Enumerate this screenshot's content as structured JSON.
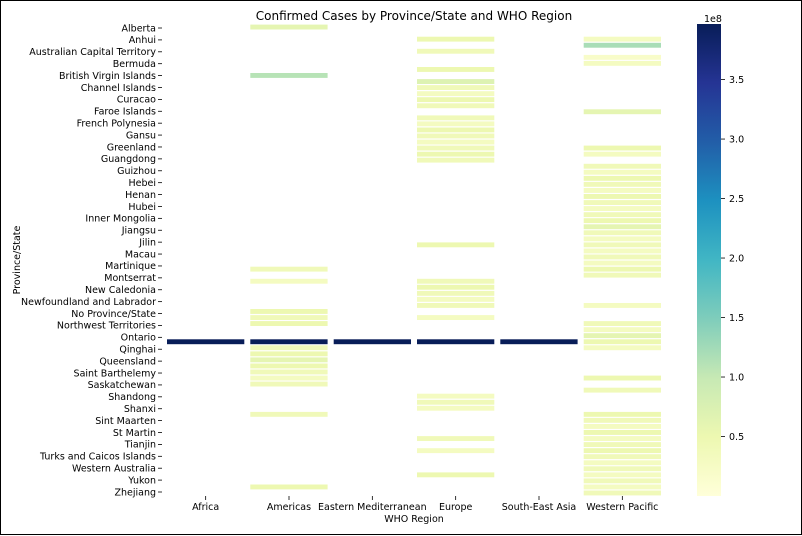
{
  "chart_data": {
    "type": "heatmap",
    "title": "Confirmed Cases by Province/State and WHO Region",
    "xlabel": "WHO Region",
    "ylabel": "Province/State",
    "x_categories": [
      "Africa",
      "Americas",
      "Eastern Mediterranean",
      "Europe",
      "South-East Asia",
      "Western Pacific"
    ],
    "y_tick_labels": [
      "Alberta",
      "Anhui",
      "Australian Capital Territory",
      "Bermuda",
      "British Virgin Islands",
      "Channel Islands",
      "Curacao",
      "Faroe Islands",
      "French Polynesia",
      "Gansu",
      "Greenland",
      "Guangdong",
      "Guizhou",
      "Hebei",
      "Henan",
      "Hubei",
      "Inner Mongolia",
      "Jiangsu",
      "Jilin",
      "Macau",
      "Martinique",
      "Montserrat",
      "New Caledonia",
      "Newfoundland and Labrador",
      "No Province/State",
      "Northwest Territories",
      "Ontario",
      "Qinghai",
      "Queensland",
      "Saint Barthelemy",
      "Saskatchewan",
      "Shandong",
      "Shanxi",
      "Sint Maarten",
      "St Martin",
      "Tianjin",
      "Turks and Caicos Islands",
      "Western Australia",
      "Yukon",
      "Zhejiang"
    ],
    "cell_rows": 78,
    "cells": [
      {
        "row": 0,
        "col": 1,
        "value": 0.6
      },
      {
        "row": 2,
        "col": 3,
        "value": 0.5
      },
      {
        "row": 2,
        "col": 5,
        "value": 0.3
      },
      {
        "row": 3,
        "col": 5,
        "value": 1.2
      },
      {
        "row": 4,
        "col": 3,
        "value": 0.4
      },
      {
        "row": 5,
        "col": 5,
        "value": 0.2
      },
      {
        "row": 6,
        "col": 5,
        "value": 0.3
      },
      {
        "row": 7,
        "col": 3,
        "value": 0.5
      },
      {
        "row": 8,
        "col": 1,
        "value": 1.1
      },
      {
        "row": 9,
        "col": 3,
        "value": 0.7
      },
      {
        "row": 10,
        "col": 3,
        "value": 0.4
      },
      {
        "row": 11,
        "col": 3,
        "value": 0.3
      },
      {
        "row": 12,
        "col": 3,
        "value": 0.5
      },
      {
        "row": 13,
        "col": 3,
        "value": 0.4
      },
      {
        "row": 14,
        "col": 5,
        "value": 0.6
      },
      {
        "row": 15,
        "col": 3,
        "value": 0.4
      },
      {
        "row": 16,
        "col": 3,
        "value": 0.3
      },
      {
        "row": 17,
        "col": 3,
        "value": 0.5
      },
      {
        "row": 18,
        "col": 3,
        "value": 0.4
      },
      {
        "row": 19,
        "col": 3,
        "value": 0.3
      },
      {
        "row": 20,
        "col": 3,
        "value": 0.4
      },
      {
        "row": 20,
        "col": 5,
        "value": 0.5
      },
      {
        "row": 21,
        "col": 3,
        "value": 0.5
      },
      {
        "row": 21,
        "col": 5,
        "value": 0.3
      },
      {
        "row": 22,
        "col": 3,
        "value": 0.4
      },
      {
        "row": 23,
        "col": 5,
        "value": 0.4
      },
      {
        "row": 24,
        "col": 5,
        "value": 0.3
      },
      {
        "row": 25,
        "col": 5,
        "value": 0.5
      },
      {
        "row": 26,
        "col": 5,
        "value": 0.4
      },
      {
        "row": 27,
        "col": 5,
        "value": 0.3
      },
      {
        "row": 28,
        "col": 5,
        "value": 0.5
      },
      {
        "row": 29,
        "col": 5,
        "value": 0.4
      },
      {
        "row": 30,
        "col": 5,
        "value": 0.3
      },
      {
        "row": 31,
        "col": 5,
        "value": 0.4
      },
      {
        "row": 32,
        "col": 5,
        "value": 0.5
      },
      {
        "row": 33,
        "col": 5,
        "value": 0.6
      },
      {
        "row": 34,
        "col": 5,
        "value": 0.4
      },
      {
        "row": 35,
        "col": 5,
        "value": 0.3
      },
      {
        "row": 36,
        "col": 3,
        "value": 0.5
      },
      {
        "row": 36,
        "col": 5,
        "value": 0.4
      },
      {
        "row": 37,
        "col": 5,
        "value": 0.3
      },
      {
        "row": 38,
        "col": 5,
        "value": 0.4
      },
      {
        "row": 39,
        "col": 5,
        "value": 0.3
      },
      {
        "row": 40,
        "col": 1,
        "value": 0.4
      },
      {
        "row": 40,
        "col": 5,
        "value": 0.5
      },
      {
        "row": 41,
        "col": 5,
        "value": 0.4
      },
      {
        "row": 42,
        "col": 1,
        "value": 0.3
      },
      {
        "row": 42,
        "col": 3,
        "value": 0.4
      },
      {
        "row": 43,
        "col": 3,
        "value": 0.5
      },
      {
        "row": 44,
        "col": 3,
        "value": 0.4
      },
      {
        "row": 45,
        "col": 3,
        "value": 0.3
      },
      {
        "row": 46,
        "col": 3,
        "value": 0.4
      },
      {
        "row": 46,
        "col": 5,
        "value": 0.3
      },
      {
        "row": 47,
        "col": 1,
        "value": 0.5
      },
      {
        "row": 48,
        "col": 1,
        "value": 0.4
      },
      {
        "row": 48,
        "col": 3,
        "value": 0.3
      },
      {
        "row": 49,
        "col": 1,
        "value": 0.5
      },
      {
        "row": 49,
        "col": 5,
        "value": 0.4
      },
      {
        "row": 50,
        "col": 5,
        "value": 0.3
      },
      {
        "row": 51,
        "col": 5,
        "value": 0.6
      },
      {
        "row": 52,
        "col": 0,
        "value": 6
      },
      {
        "row": 52,
        "col": 1,
        "value": 396.7
      },
      {
        "row": 52,
        "col": 2,
        "value": 17
      },
      {
        "row": 52,
        "col": 3,
        "value": 225
      },
      {
        "row": 52,
        "col": 4,
        "value": 20
      },
      {
        "row": 52,
        "col": 5,
        "value": 0.5
      },
      {
        "row": 53,
        "col": 1,
        "value": 0.4
      },
      {
        "row": 53,
        "col": 5,
        "value": 0.3
      },
      {
        "row": 54,
        "col": 1,
        "value": 0.5
      },
      {
        "row": 55,
        "col": 1,
        "value": 0.6
      },
      {
        "row": 56,
        "col": 1,
        "value": 0.5
      },
      {
        "row": 57,
        "col": 1,
        "value": 0.4
      },
      {
        "row": 58,
        "col": 1,
        "value": 0.3
      },
      {
        "row": 58,
        "col": 5,
        "value": 0.5
      },
      {
        "row": 59,
        "col": 1,
        "value": 0.4
      },
      {
        "row": 60,
        "col": 5,
        "value": 0.4
      },
      {
        "row": 61,
        "col": 3,
        "value": 0.3
      },
      {
        "row": 62,
        "col": 3,
        "value": 0.4
      },
      {
        "row": 63,
        "col": 3,
        "value": 0.3
      },
      {
        "row": 64,
        "col": 1,
        "value": 0.4
      },
      {
        "row": 64,
        "col": 5,
        "value": 0.5
      },
      {
        "row": 65,
        "col": 5,
        "value": 0.4
      },
      {
        "row": 66,
        "col": 5,
        "value": 0.3
      },
      {
        "row": 67,
        "col": 5,
        "value": 0.5
      },
      {
        "row": 68,
        "col": 3,
        "value": 0.4
      },
      {
        "row": 68,
        "col": 5,
        "value": 0.3
      },
      {
        "row": 69,
        "col": 5,
        "value": 0.4
      },
      {
        "row": 70,
        "col": 3,
        "value": 0.3
      },
      {
        "row": 70,
        "col": 5,
        "value": 0.5
      },
      {
        "row": 71,
        "col": 5,
        "value": 0.4
      },
      {
        "row": 72,
        "col": 5,
        "value": 0.3
      },
      {
        "row": 73,
        "col": 5,
        "value": 0.4
      },
      {
        "row": 74,
        "col": 3,
        "value": 0.5
      },
      {
        "row": 74,
        "col": 5,
        "value": 0.3
      },
      {
        "row": 75,
        "col": 5,
        "value": 0.4
      },
      {
        "row": 76,
        "col": 1,
        "value": 0.5
      },
      {
        "row": 76,
        "col": 5,
        "value": 0.3
      },
      {
        "row": 77,
        "col": 5,
        "value": 0.4
      }
    ],
    "colorbar": {
      "colormap": "YlGnBu",
      "min": 0,
      "max": 3.967,
      "ticks": [
        "0.5",
        "1.0",
        "1.5",
        "2.0",
        "2.5",
        "3.0",
        "3.5"
      ],
      "tick_values": [
        0.5,
        1.0,
        1.5,
        2.0,
        2.5,
        3.0,
        3.5
      ],
      "scale_label": "1e8"
    },
    "grid": false,
    "legend": "none"
  }
}
